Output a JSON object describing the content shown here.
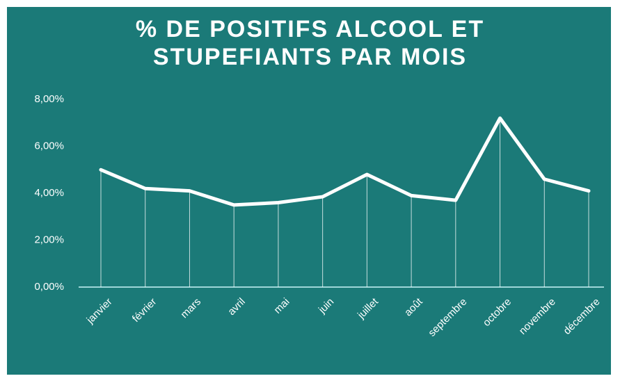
{
  "chart_data": {
    "type": "line",
    "title": "% DE POSITIFS ALCOOL ET STUPEFIANTS PAR MOIS",
    "categories": [
      "janvier",
      "février",
      "mars",
      "avril",
      "mai",
      "juin",
      "juillet",
      "août",
      "septembre",
      "octobre",
      "novembre",
      "décembre"
    ],
    "series": [
      {
        "color": "#ffffff",
        "values": [
          5.0,
          4.2,
          4.1,
          3.5,
          3.6,
          3.85,
          4.8,
          3.9,
          3.7,
          7.2,
          4.6,
          4.1
        ]
      }
    ],
    "ylim": [
      0,
      8
    ],
    "yticks": [
      {
        "value": 0,
        "label": "0,00%"
      },
      {
        "value": 2,
        "label": "2,00%"
      },
      {
        "value": 4,
        "label": "4,00%"
      },
      {
        "value": 6,
        "label": "6,00%"
      },
      {
        "value": 8,
        "label": "8,00%"
      }
    ]
  }
}
